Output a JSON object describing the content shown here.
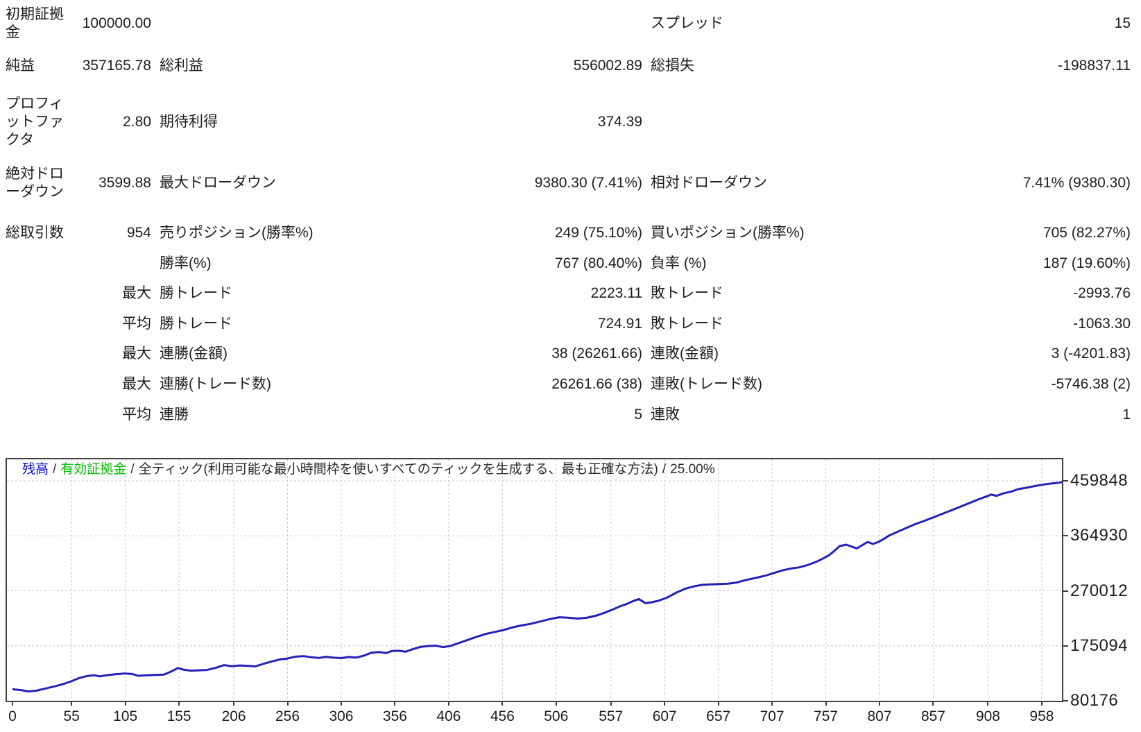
{
  "colors": {
    "text": "#1c1c1c",
    "balance_blue": "#0008CE",
    "equity_green": "#00BE00",
    "line_blue": "#2222B8",
    "grid_gray": "#C9C9C9",
    "border_gray": "#3F3F3F"
  },
  "report": {
    "rows": [
      {
        "l1": "初期証拠金",
        "v1": "100000.00",
        "l2": "",
        "v2": "",
        "l3": "スプレッド",
        "v3": "15"
      },
      {
        "l1": "純益",
        "v1": "357165.78",
        "l2": "総利益",
        "v2": "556002.89",
        "l3": "総損失",
        "v3": "-198837.11"
      },
      {
        "l1": "プロフィットファクタ",
        "v1": "2.80",
        "l2": "期待利得",
        "v2": "374.39",
        "l3": "",
        "v3": ""
      },
      {
        "l1": "絶対ドローダウン",
        "v1": "3599.88",
        "l2": "最大ドローダウン",
        "v2": "9380.30 (7.41%)",
        "l3": "相対ドローダウン",
        "v3": "7.41% (9380.30)"
      },
      {
        "l1": "総取引数",
        "v1": "954",
        "l2": "売りポジション(勝率%)",
        "v2": "249 (75.10%)",
        "l3": "買いポジション(勝率%)",
        "v3": "705 (82.27%)"
      },
      {
        "l1": "",
        "v1": "",
        "l2": "勝率(%)",
        "v2": "767 (80.40%)",
        "l3": "負率 (%)",
        "v3": "187 (19.60%)"
      },
      {
        "l1": "",
        "v1": "最大",
        "l2": "勝トレード",
        "v2": "2223.11",
        "l3": "敗トレード",
        "v3": "-2993.76"
      },
      {
        "l1": "",
        "v1": "平均",
        "l2": "勝トレード",
        "v2": "724.91",
        "l3": "敗トレード",
        "v3": "-1063.30"
      },
      {
        "l1": "",
        "v1": "最大",
        "l2": "連勝(金額)",
        "v2": "38 (26261.66)",
        "l3": "連敗(金額)",
        "v3": "3 (-4201.83)"
      },
      {
        "l1": "",
        "v1": "最大",
        "l2": "連勝(トレード数)",
        "v2": "26261.66 (38)",
        "l3": "連敗(トレード数)",
        "v3": "-5746.38 (2)"
      },
      {
        "l1": "",
        "v1": "平均",
        "l2": "連勝",
        "v2": "5",
        "l3": "連敗",
        "v3": "1"
      }
    ]
  },
  "chart_data": {
    "type": "line",
    "legend": {
      "balance_label": "残高",
      "equity_label": "有効証拠金",
      "model_label": "全ティック(利用可能な最小時間枠を使いすべてのティックを生成する、最も正確な方法)",
      "quality_label": "25.00%",
      "separator": "/"
    },
    "xlabel": "",
    "ylabel": "",
    "x_ticks": [
      0,
      55,
      105,
      155,
      206,
      256,
      306,
      356,
      406,
      456,
      506,
      557,
      607,
      657,
      707,
      757,
      807,
      857,
      908,
      958
    ],
    "y_ticks": [
      459848,
      364930,
      270012,
      175094,
      80176
    ],
    "x_range": [
      0,
      978
    ],
    "y_range": [
      80176,
      459848
    ],
    "grid": "dashed",
    "legend_position": "top-left",
    "series": [
      {
        "name": "残高",
        "color": "#2222B8",
        "points": [
          [
            0,
            100000
          ],
          [
            8,
            98600
          ],
          [
            15,
            96400
          ],
          [
            22,
            97600
          ],
          [
            30,
            101000
          ],
          [
            40,
            105500
          ],
          [
            48,
            109500
          ],
          [
            55,
            114000
          ],
          [
            62,
            119500
          ],
          [
            70,
            123000
          ],
          [
            76,
            124300
          ],
          [
            81,
            122300
          ],
          [
            88,
            124400
          ],
          [
            96,
            126000
          ],
          [
            104,
            127100
          ],
          [
            111,
            126700
          ],
          [
            117,
            123300
          ],
          [
            125,
            124300
          ],
          [
            133,
            124800
          ],
          [
            141,
            125500
          ],
          [
            148,
            131000
          ],
          [
            154,
            136700
          ],
          [
            159,
            133900
          ],
          [
            166,
            132100
          ],
          [
            173,
            132800
          ],
          [
            181,
            133300
          ],
          [
            189,
            137000
          ],
          [
            197,
            141700
          ],
          [
            204,
            139800
          ],
          [
            211,
            141100
          ],
          [
            219,
            140500
          ],
          [
            226,
            139600
          ],
          [
            233,
            143500
          ],
          [
            241,
            148000
          ],
          [
            249,
            151500
          ],
          [
            256,
            153100
          ],
          [
            263,
            156300
          ],
          [
            271,
            157200
          ],
          [
            278,
            155400
          ],
          [
            285,
            154100
          ],
          [
            292,
            156100
          ],
          [
            299,
            154600
          ],
          [
            306,
            153800
          ],
          [
            313,
            155700
          ],
          [
            320,
            154800
          ],
          [
            327,
            158000
          ],
          [
            334,
            163000
          ],
          [
            341,
            164300
          ],
          [
            348,
            162700
          ],
          [
            353,
            166100
          ],
          [
            359,
            166500
          ],
          [
            366,
            164800
          ],
          [
            373,
            169500
          ],
          [
            380,
            173300
          ],
          [
            387,
            174700
          ],
          [
            394,
            175300
          ],
          [
            401,
            172800
          ],
          [
            408,
            175000
          ],
          [
            415,
            179500
          ],
          [
            422,
            184100
          ],
          [
            431,
            190000
          ],
          [
            440,
            195300
          ],
          [
            449,
            199000
          ],
          [
            457,
            202300
          ],
          [
            465,
            206700
          ],
          [
            473,
            210000
          ],
          [
            482,
            212900
          ],
          [
            491,
            217000
          ],
          [
            500,
            221200
          ],
          [
            509,
            224400
          ],
          [
            517,
            223600
          ],
          [
            526,
            222100
          ],
          [
            534,
            223300
          ],
          [
            543,
            227000
          ],
          [
            551,
            232000
          ],
          [
            559,
            238000
          ],
          [
            566,
            243500
          ],
          [
            572,
            247500
          ],
          [
            578,
            252500
          ],
          [
            583,
            255700
          ],
          [
            589,
            248800
          ],
          [
            595,
            250300
          ],
          [
            601,
            252800
          ],
          [
            609,
            258000
          ],
          [
            618,
            267000
          ],
          [
            626,
            273500
          ],
          [
            634,
            277500
          ],
          [
            642,
            280300
          ],
          [
            650,
            281200
          ],
          [
            658,
            281600
          ],
          [
            666,
            282300
          ],
          [
            674,
            284300
          ],
          [
            682,
            288300
          ],
          [
            691,
            292000
          ],
          [
            700,
            295800
          ],
          [
            708,
            300300
          ],
          [
            716,
            305000
          ],
          [
            724,
            308300
          ],
          [
            732,
            310400
          ],
          [
            740,
            314500
          ],
          [
            748,
            320000
          ],
          [
            754,
            325300
          ],
          [
            760,
            331500
          ],
          [
            765,
            339000
          ],
          [
            770,
            347300
          ],
          [
            776,
            349700
          ],
          [
            781,
            346300
          ],
          [
            786,
            343200
          ],
          [
            791,
            349000
          ],
          [
            796,
            354300
          ],
          [
            801,
            350800
          ],
          [
            806,
            354500
          ],
          [
            811,
            359500
          ],
          [
            816,
            365500
          ],
          [
            824,
            372000
          ],
          [
            832,
            378500
          ],
          [
            840,
            385000
          ],
          [
            849,
            391000
          ],
          [
            858,
            397500
          ],
          [
            867,
            404000
          ],
          [
            876,
            410500
          ],
          [
            884,
            416500
          ],
          [
            892,
            422500
          ],
          [
            900,
            428500
          ],
          [
            906,
            432500
          ],
          [
            911,
            436000
          ],
          [
            916,
            434000
          ],
          [
            922,
            438000
          ],
          [
            930,
            441500
          ],
          [
            936,
            445500
          ],
          [
            944,
            448000
          ],
          [
            952,
            451000
          ],
          [
            960,
            453500
          ],
          [
            968,
            455500
          ],
          [
            973,
            456500
          ],
          [
            978,
            457800
          ]
        ]
      }
    ]
  }
}
